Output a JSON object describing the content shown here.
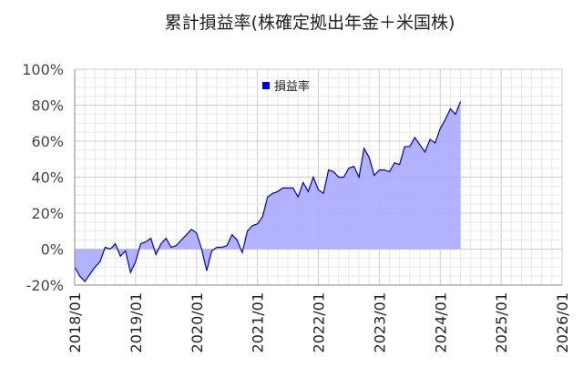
{
  "chart_data": {
    "type": "area",
    "title": "累計損益率(株確定拠出年金＋米国株)",
    "legend": {
      "label": "損益率",
      "position": "top-center"
    },
    "colors": {
      "line": "#0000cc",
      "fill": "#aaaaff",
      "legend_marker": "#0000cc",
      "grid_minor": "#e8e8e8",
      "grid_major": "#cccccc",
      "baseline": "#888888"
    },
    "xlabel": "",
    "ylabel": "",
    "grid": true,
    "x_ticks": [
      "2018/01",
      "2019/01",
      "2020/01",
      "2021/01",
      "2022/01",
      "2023/01",
      "2024/01",
      "2025/01",
      "2026/01"
    ],
    "y_ticks": [
      "-20%",
      "0%",
      "20%",
      "40%",
      "60%",
      "80%",
      "100%"
    ],
    "ylim": [
      -20,
      100
    ],
    "xlim": [
      "2018-01",
      "2026-01"
    ],
    "series": [
      {
        "name": "損益率",
        "x": [
          "2018-01",
          "2018-02",
          "2018-03",
          "2018-04",
          "2018-05",
          "2018-06",
          "2018-07",
          "2018-08",
          "2018-09",
          "2018-10",
          "2018-11",
          "2018-12",
          "2019-01",
          "2019-02",
          "2019-03",
          "2019-04",
          "2019-05",
          "2019-06",
          "2019-07",
          "2019-08",
          "2019-09",
          "2019-10",
          "2019-11",
          "2019-12",
          "2020-01",
          "2020-02",
          "2020-03",
          "2020-04",
          "2020-05",
          "2020-06",
          "2020-07",
          "2020-08",
          "2020-09",
          "2020-10",
          "2020-11",
          "2020-12",
          "2021-01",
          "2021-02",
          "2021-03",
          "2021-04",
          "2021-05",
          "2021-06",
          "2021-07",
          "2021-08",
          "2021-09",
          "2021-10",
          "2021-11",
          "2021-12",
          "2022-01",
          "2022-02",
          "2022-03",
          "2022-04",
          "2022-05",
          "2022-06",
          "2022-07",
          "2022-08",
          "2022-09",
          "2022-10",
          "2022-11",
          "2022-12",
          "2023-01",
          "2023-02",
          "2023-03",
          "2023-04",
          "2023-05",
          "2023-06",
          "2023-07",
          "2023-08",
          "2023-09",
          "2023-10",
          "2023-11",
          "2023-12",
          "2024-01",
          "2024-02",
          "2024-03",
          "2024-04"
        ],
        "values": [
          -10,
          -15,
          -18,
          -14,
          -10,
          -7,
          1,
          0,
          3,
          -4,
          -1,
          -13,
          -7,
          3,
          4,
          6,
          -3,
          3,
          6,
          1,
          2,
          5,
          8,
          11,
          9,
          0,
          -12,
          -1,
          1,
          1,
          2,
          8,
          5,
          -2,
          10,
          13,
          14,
          18,
          29,
          31,
          32,
          34,
          34,
          34,
          29,
          37,
          32,
          40,
          33,
          31,
          44,
          43,
          40,
          40,
          45,
          46,
          40,
          56,
          51,
          41,
          44,
          44,
          43,
          48,
          47,
          57,
          57,
          62,
          58,
          54,
          61,
          59,
          67,
          72,
          78,
          75
        ]
      }
    ],
    "series_end": {
      "x": "2024-05",
      "value": 82
    }
  }
}
